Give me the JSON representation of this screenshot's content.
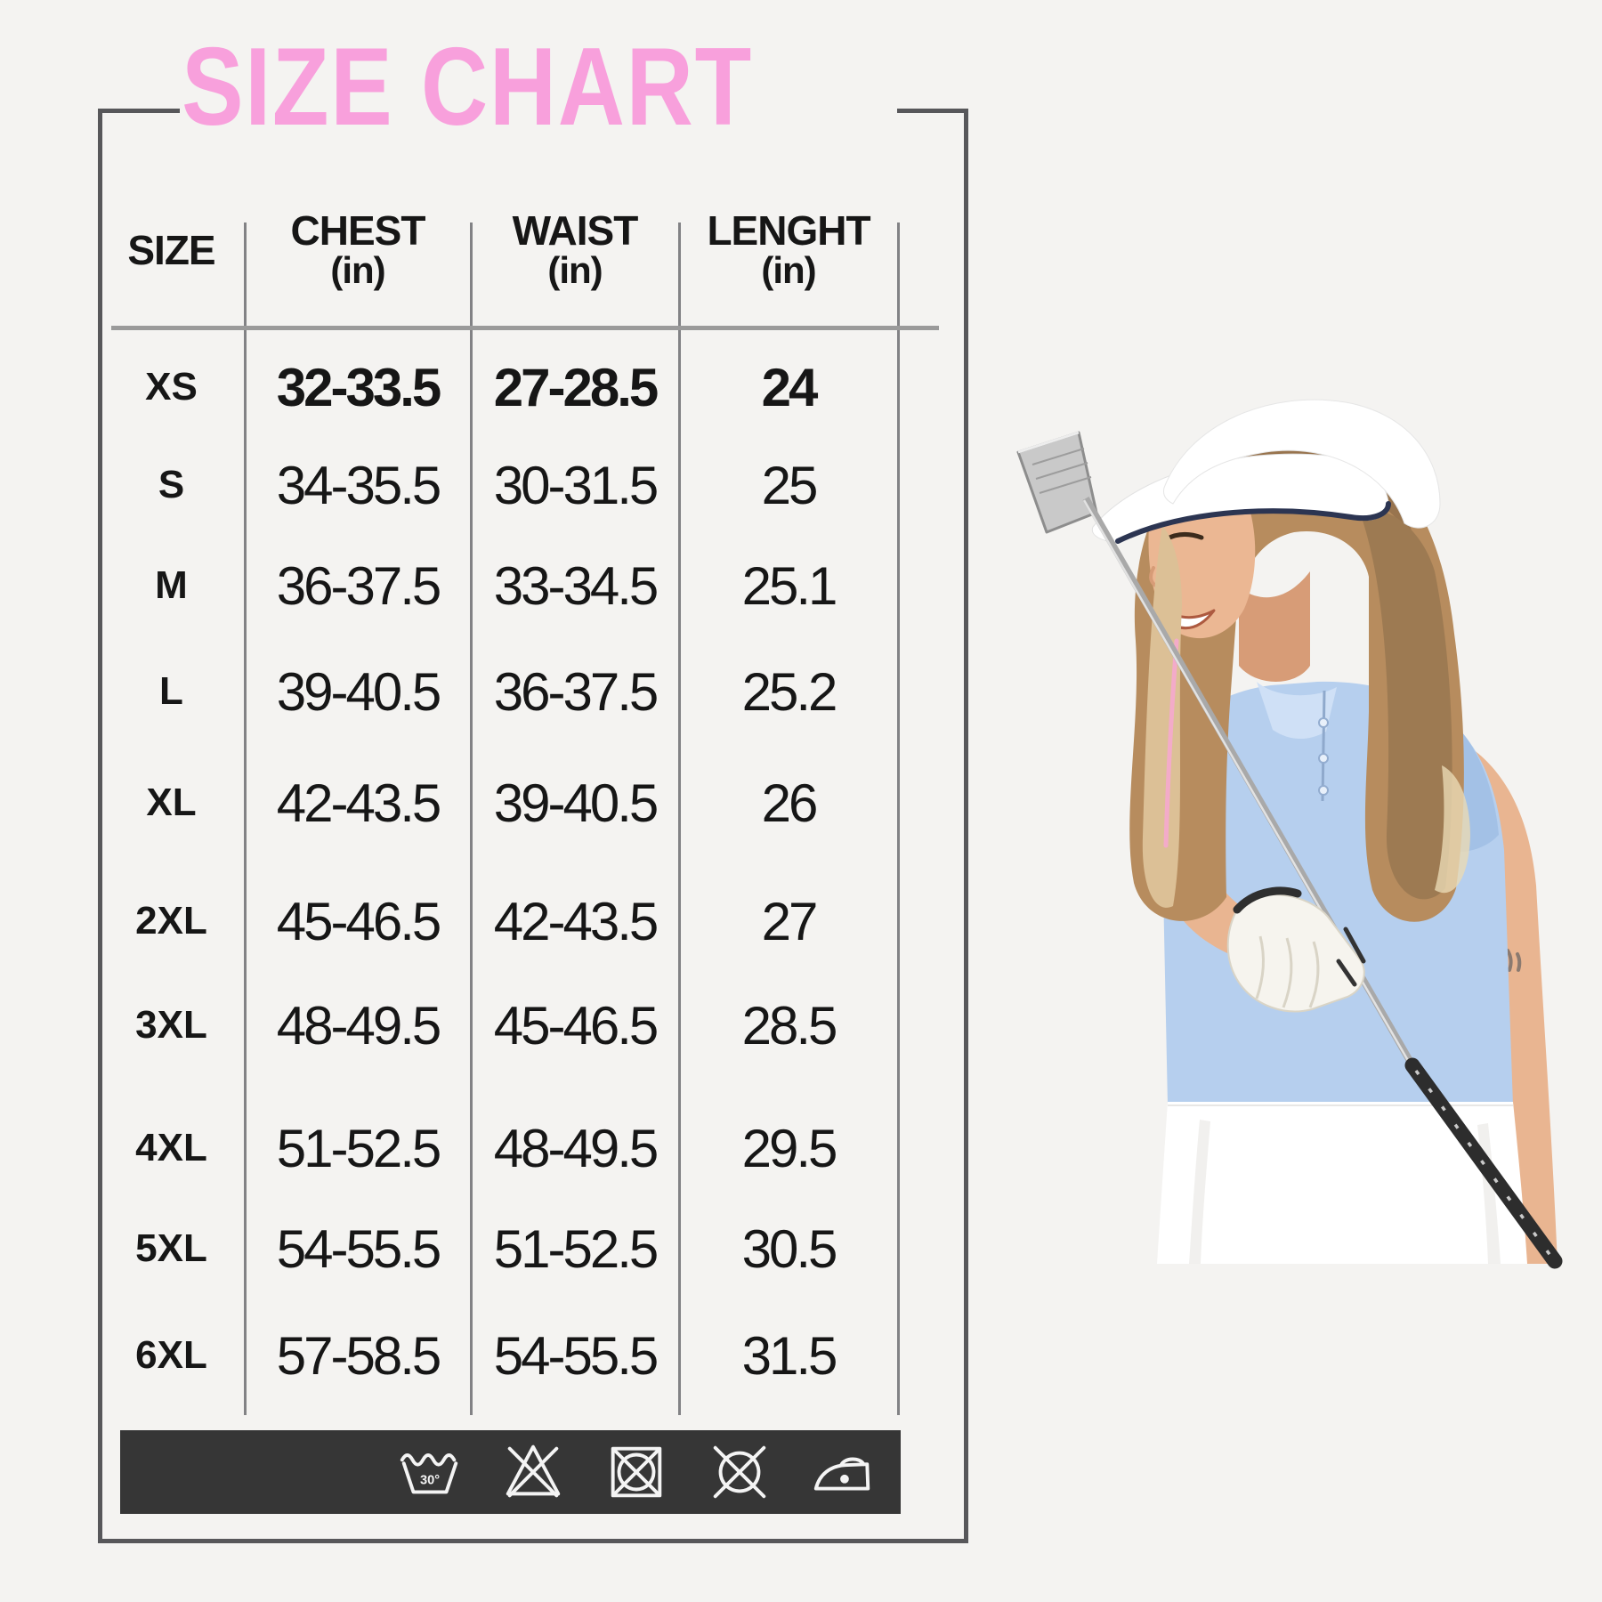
{
  "title": "SIZE CHART",
  "title_color": "#f8a0dc",
  "chart_data": {
    "type": "table",
    "title": "SIZE CHART",
    "columns": [
      "SIZE",
      "CHEST (in)",
      "WAIST (in)",
      "LENGHT (in)"
    ],
    "column_headers": [
      {
        "label": "SIZE",
        "unit": ""
      },
      {
        "label": "CHEST",
        "unit": "(in)"
      },
      {
        "label": "WAIST",
        "unit": "(in)"
      },
      {
        "label": "LENGHT",
        "unit": "(in)"
      }
    ],
    "emphasized_row": "XS",
    "rows": [
      [
        "XS",
        "32-33.5",
        "27-28.5",
        "24"
      ],
      [
        "S",
        "34-35.5",
        "30-31.5",
        "25"
      ],
      [
        "M",
        "36-37.5",
        "33-34.5",
        "25.1"
      ],
      [
        "L",
        "39-40.5",
        "36-37.5",
        "25.2"
      ],
      [
        "XL",
        "42-43.5",
        "39-40.5",
        "26"
      ],
      [
        "2XL",
        "45-46.5",
        "42-43.5",
        "27"
      ],
      [
        "3XL",
        "48-49.5",
        "45-46.5",
        "28.5"
      ],
      [
        "4XL",
        "51-52.5",
        "48-49.5",
        "29.5"
      ],
      [
        "5XL",
        "54-55.5",
        "51-52.5",
        "30.5"
      ],
      [
        "6XL",
        "57-58.5",
        "54-55.5",
        "31.5"
      ]
    ]
  },
  "care_bar": {
    "background": "#363636",
    "wash_temp_label": "30°",
    "icons": [
      "wash-at-30-icon",
      "do-not-bleach-icon",
      "do-not-tumble-dry-icon",
      "do-not-dry-clean-icon",
      "iron-low-heat-icon"
    ]
  },
  "photo": {
    "alt": "Smiling woman in a white sun visor and light blue polo shirt holding a golf club with a white glove"
  }
}
